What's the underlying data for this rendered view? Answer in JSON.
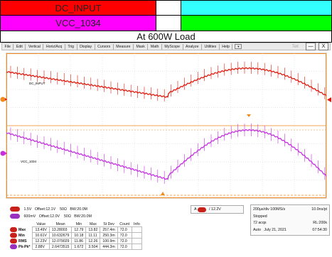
{
  "legend": {
    "row1": {
      "label": "DC_INPUT",
      "color": "#ff0000",
      "mid_color": "#ffffff",
      "right_color": "#33ffff"
    },
    "row2": {
      "label": "VCC_1034",
      "color": "#ff00ff",
      "mid_color": "#ffffff",
      "right_color": "#00ff00"
    }
  },
  "banner": {
    "title": "At 600W Load"
  },
  "menu": {
    "items": [
      "File",
      "Edit",
      "Vertical",
      "Horiz/Acq",
      "Trig",
      "Display",
      "Cursors",
      "Measure",
      "Mask",
      "Math",
      "MyScope",
      "Analyze",
      "Utilities",
      "Help"
    ],
    "dropdown_glyph": "▼",
    "brand": "Tek",
    "minimize_glyph": "—",
    "close_glyph": "X"
  },
  "scope": {
    "ch1_label": "DC_INPUT",
    "ch4_label": "VCC_1034",
    "ch1_color": "#e0190c",
    "ch4_color": "#c430e0",
    "trigger_color": "#f08a1c"
  },
  "channels": [
    {
      "num": "1",
      "scale": "1.5V",
      "offset": "Offset:12.1V",
      "impedance": "50Ω",
      "bw": "BW:20.0M"
    },
    {
      "num": "4",
      "scale": "600mV",
      "offset": "Offset:12.0V",
      "impedance": "50Ω",
      "bw": "BW:20.0M"
    }
  ],
  "trigger": {
    "source": "A",
    "ch": "1",
    "level": "12.2V"
  },
  "acquisition": {
    "timebase": "200µs/div",
    "sample_rate": "100MS/s",
    "resolution": "10.0ns/pt",
    "state": "Stopped",
    "acqs": "72 acqs",
    "record_length": "RL:200k",
    "mode": "Auto",
    "date": "July 21, 2021",
    "time": "07:54:30"
  },
  "measurements": {
    "headers": [
      "Value",
      "Mean",
      "Min",
      "Max",
      "St Dev",
      "Count",
      "Info"
    ],
    "rows": [
      {
        "name": "Max",
        "values": [
          "13.49V",
          "13.28003",
          "12.79",
          "13.82",
          "257.4m",
          "72.0",
          ""
        ]
      },
      {
        "name": "Min",
        "values": [
          "10.61V",
          "10.632679",
          "10.18",
          "11.11",
          "250.3m",
          "72.0",
          ""
        ]
      },
      {
        "name": "RMS",
        "values": [
          "12.23V",
          "12.079029",
          "11.86",
          "12.26",
          "100.9m",
          "72.0",
          ""
        ]
      },
      {
        "name": "Pk-Pk*",
        "values": [
          "2.88V",
          "2.6473515",
          "1.672",
          "3.504",
          "444.3m",
          "72.0",
          ""
        ]
      }
    ]
  }
}
